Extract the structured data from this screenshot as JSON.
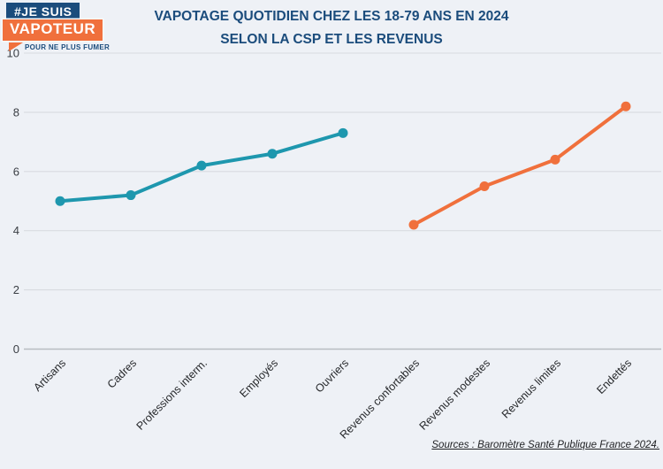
{
  "logo": {
    "line1": "#JE SUIS",
    "line2": "VAPOTEUR",
    "tagline": "POUR NE PLUS FUMER"
  },
  "title": {
    "line1": "VAPOTAGE QUOTIDIEN CHEZ LES 18-79 ANS EN 2024",
    "line2": "SELON LA CSP ET LES REVENUS"
  },
  "source": "Sources : Baromètre Santé Publique France 2024.",
  "colors": {
    "navy": "#1b4c7c",
    "teal": "#1e97ae",
    "orange": "#f0703c",
    "background": "#eef1f6",
    "gridline": "#d8dbe0",
    "axis_line": "#b8bcc2",
    "tick_text": "#3a3e44",
    "category_text": "#26282b"
  },
  "chart_data": {
    "type": "line",
    "title": "Vapotage quotidien chez les 18-79 ans en 2024 selon la CSP et les revenus",
    "categories": [
      "Artisans",
      "Cadres",
      "Professions interm.",
      "Employés",
      "Ouvriers",
      "Revenus confortables",
      "Revenus modestes",
      "Revenus limites",
      "Endettés"
    ],
    "series": [
      {
        "name": "CSP",
        "color_key": "teal",
        "start_index": 0,
        "values": [
          5.0,
          5.2,
          6.2,
          6.6,
          7.3
        ]
      },
      {
        "name": "Revenus",
        "color_key": "orange",
        "start_index": 5,
        "values": [
          4.2,
          5.5,
          6.4,
          8.2
        ]
      }
    ],
    "ylim": [
      0,
      10
    ],
    "yticks": [
      0,
      2,
      4,
      6,
      8,
      10
    ],
    "grid": true,
    "legend": "none",
    "xlabel": "",
    "ylabel": ""
  }
}
